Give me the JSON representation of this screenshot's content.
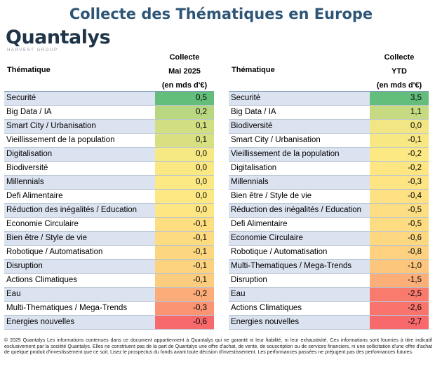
{
  "title": "Collecte des Thématiques en Europe",
  "logo": {
    "word": "Quantalys",
    "sub": "HARVEST GROUP"
  },
  "tables": [
    {
      "theme_header": "Thématique",
      "col_header": [
        "Collecte",
        "Mai 2025",
        "(en mds d'€)"
      ],
      "rows": [
        {
          "name": "Securité",
          "value": "0,5",
          "color": "#63be7b"
        },
        {
          "name": "Big Data / IA",
          "value": "0,2",
          "color": "#b9d680"
        },
        {
          "name": "Smart City / Urbanisation",
          "value": "0,1",
          "color": "#d2de82"
        },
        {
          "name": "Vieillissement de la population",
          "value": "0,1",
          "color": "#d8e082"
        },
        {
          "name": "Digitalisation",
          "value": "0,0",
          "color": "#f6e883"
        },
        {
          "name": "Biodiversité",
          "value": "0,0",
          "color": "#fae983"
        },
        {
          "name": "Millennials",
          "value": "0,0",
          "color": "#fde983"
        },
        {
          "name": "Defi Alimentaire",
          "value": "0,0",
          "color": "#fee883"
        },
        {
          "name": "Réduction des inégalités / Education",
          "value": "0,0",
          "color": "#fee683"
        },
        {
          "name": "Economie Circulaire",
          "value": "-0,1",
          "color": "#fede81"
        },
        {
          "name": "Bien être / Style de vie",
          "value": "-0,1",
          "color": "#fddb81"
        },
        {
          "name": "Robotique / Automatisation",
          "value": "-0,1",
          "color": "#fdd780"
        },
        {
          "name": "Disruption",
          "value": "-0,1",
          "color": "#fdd27f"
        },
        {
          "name": "Actions Climatiques",
          "value": "-0,1",
          "color": "#fccd7e"
        },
        {
          "name": "Eau",
          "value": "-0,2",
          "color": "#fbac78"
        },
        {
          "name": "Multi-Thematiques / Mega-Trends",
          "value": "-0,3",
          "color": "#fa9473"
        },
        {
          "name": "Energies nouvelles",
          "value": "-0,6",
          "color": "#f8696b"
        }
      ]
    },
    {
      "theme_header": "Thématique",
      "col_header": [
        "Collecte",
        "YTD",
        "(en mds d'€)"
      ],
      "rows": [
        {
          "name": "Securité",
          "value": "3,5",
          "color": "#63be7b"
        },
        {
          "name": "Big Data / IA",
          "value": "1,1",
          "color": "#c5da81"
        },
        {
          "name": "Biodiversité",
          "value": "0,0",
          "color": "#f1e683"
        },
        {
          "name": "Smart City / Urbanisation",
          "value": "-0,1",
          "color": "#f8e883"
        },
        {
          "name": "Vieillissement de la population",
          "value": "-0,2",
          "color": "#fde983"
        },
        {
          "name": "Digitalisation",
          "value": "-0,2",
          "color": "#fee783"
        },
        {
          "name": "Millennials",
          "value": "-0,3",
          "color": "#fee483"
        },
        {
          "name": "Bien être / Style de vie",
          "value": "-0,4",
          "color": "#fee182"
        },
        {
          "name": "Réduction des inégalités / Education",
          "value": "-0,5",
          "color": "#fede82"
        },
        {
          "name": "Defi Alimentaire",
          "value": "-0,5",
          "color": "#fedc81"
        },
        {
          "name": "Economie Circulaire",
          "value": "-0,6",
          "color": "#fdd881"
        },
        {
          "name": "Robotique / Automatisation",
          "value": "-0,8",
          "color": "#fdd17f"
        },
        {
          "name": "Multi-Thematiques / Mega-Trends",
          "value": "-1,0",
          "color": "#fcc77d"
        },
        {
          "name": "Disruption",
          "value": "-1,5",
          "color": "#fbae78"
        },
        {
          "name": "Eau",
          "value": "-2,5",
          "color": "#f97b6e"
        },
        {
          "name": "Actions Climatiques",
          "value": "-2,6",
          "color": "#f8746d"
        },
        {
          "name": "Energies nouvelles",
          "value": "-2,7",
          "color": "#f8696b"
        }
      ]
    }
  ],
  "footer": "© 2025 Quantalys Les informations contenues dans ce document appartiennent à Quantalys qui ne garantit ni leur fiabilité, ni leur exhaustivité. Ces informations sont fournies à titre indicatif exclusivement par la société Quantalys. Elles ne constituent pas de la part de Quantalys une offre d'achat, de vente, de souscription ou de services financiers, ni une sollicitation d'une offre d'achat de quelque produit d'investissement que ce soit. Lisez le prospectus du fonds avant toute décision d'investissement. Les performances passées ne préjugent pas des performances futures."
}
